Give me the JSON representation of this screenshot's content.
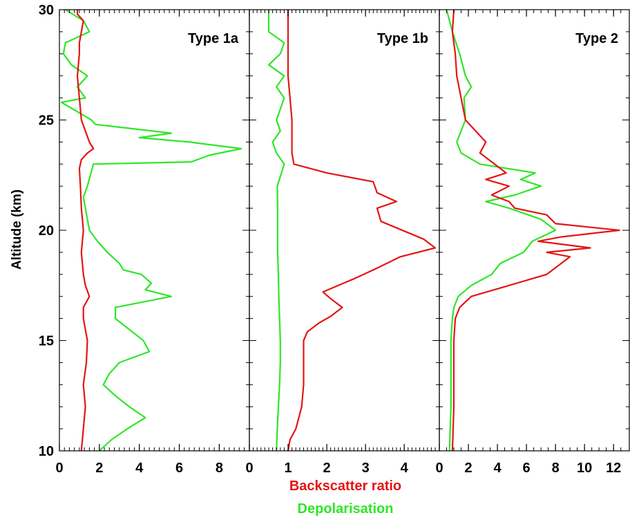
{
  "chart_data": {
    "type": "line",
    "ylabel": "Altitude (km)",
    "ylim": [
      10,
      30
    ],
    "yticks": [
      10,
      15,
      20,
      25,
      30
    ],
    "bottom_labels": [
      "Backscatter ratio",
      "Depolarisation"
    ],
    "colors": {
      "backscatter": "#e41414",
      "depolarisation": "#2ee628",
      "axes": "#000000"
    },
    "panels": [
      {
        "title": "Type 1a",
        "xlim": [
          0,
          9.3
        ],
        "xticks": [
          0,
          2,
          4,
          6,
          8
        ],
        "xtick_labels": [
          "0",
          "2",
          "4",
          "6",
          "8"
        ],
        "series": [
          {
            "name": "Backscatter ratio",
            "y": [
              10,
              11,
              12,
              13,
              14,
              15,
              16,
              16.5,
              17,
              17.5,
              18,
              19,
              20,
              21,
              22,
              22.8,
              23.2,
              23.5,
              23.7,
              24,
              24.5,
              25,
              26,
              27,
              28,
              28.5,
              29,
              29.5,
              29.8,
              30
            ],
            "x": [
              1.1,
              1.2,
              1.3,
              1.2,
              1.35,
              1.4,
              1.2,
              1.2,
              1.5,
              1.3,
              1.2,
              1.1,
              1.2,
              1.1,
              1.05,
              1.0,
              1.1,
              1.4,
              1.7,
              1.5,
              1.3,
              1.1,
              1.0,
              0.9,
              1.0,
              1.0,
              1.1,
              1.2,
              0.9,
              0.9
            ]
          },
          {
            "name": "Depolarisation",
            "y": [
              10,
              10.5,
              11,
              11.5,
              12,
              12.5,
              13,
              13.5,
              14,
              14.5,
              15,
              15.5,
              16,
              16.5,
              17,
              17.3,
              17.6,
              18,
              18.2,
              18.5,
              19,
              19.5,
              20,
              21,
              21.5,
              22,
              23,
              23.1,
              23.4,
              23.7,
              24,
              24.2,
              24.4,
              24.8,
              25,
              25.8,
              26,
              26.5,
              27,
              27.5,
              28,
              28.5,
              29,
              29.5,
              30
            ],
            "x": [
              2.0,
              2.6,
              3.4,
              4.3,
              3.5,
              2.8,
              2.2,
              2.5,
              3.0,
              4.5,
              4.2,
              3.5,
              2.8,
              2.8,
              5.6,
              4.3,
              4.6,
              4.1,
              3.2,
              3.0,
              2.4,
              1.9,
              1.5,
              1.3,
              1.2,
              1.4,
              1.7,
              6.6,
              7.5,
              9.1,
              6.5,
              4.0,
              5.6,
              1.8,
              1.6,
              0.1,
              1.3,
              0.9,
              1.4,
              0.6,
              0.2,
              0.3,
              1.5,
              1.2,
              0.3
            ]
          }
        ]
      },
      {
        "title": "Type 1b",
        "xlim": [
          0,
          4.8
        ],
        "xticks": [
          0,
          1,
          2,
          3,
          4
        ],
        "xtick_labels": [
          "0",
          "1",
          "2",
          "3",
          "4"
        ],
        "series": [
          {
            "name": "Backscatter ratio",
            "y": [
              10,
              10.5,
              11,
              12,
              13,
              14,
              15,
              15.4,
              15.8,
              16.1,
              16.5,
              16.9,
              17.2,
              17.8,
              18.2,
              18.8,
              19.2,
              19.6,
              20.4,
              21,
              21.3,
              21.7,
              22.2,
              22.6,
              23,
              23.5,
              25,
              27,
              29,
              30
            ],
            "x": [
              1.0,
              1.05,
              1.2,
              1.35,
              1.4,
              1.4,
              1.4,
              1.5,
              1.8,
              2.1,
              2.4,
              2.1,
              1.9,
              2.7,
              3.2,
              3.9,
              4.8,
              4.5,
              3.4,
              3.3,
              3.8,
              3.3,
              3.2,
              2.0,
              1.15,
              1.1,
              1.1,
              1.0,
              1.0,
              1.0
            ]
          },
          {
            "name": "Depolarisation",
            "y": [
              10,
              11,
              12,
              13,
              14,
              15,
              16,
              17,
              18,
              19,
              20,
              21,
              22,
              23,
              23.5,
              24,
              24.5,
              25,
              25.5,
              26,
              26.5,
              27,
              27.5,
              28,
              28.5,
              29,
              29.5,
              30
            ],
            "x": [
              0.7,
              0.72,
              0.75,
              0.78,
              0.8,
              0.8,
              0.78,
              0.76,
              0.75,
              0.73,
              0.73,
              0.73,
              0.72,
              0.9,
              0.7,
              0.6,
              0.8,
              0.7,
              0.8,
              0.9,
              0.7,
              0.9,
              0.5,
              0.8,
              0.9,
              0.5,
              0.5,
              0.5
            ]
          }
        ]
      },
      {
        "title": "Type 2",
        "xlim": [
          0,
          12.8
        ],
        "xticks": [
          0,
          2,
          4,
          6,
          8,
          10,
          12
        ],
        "xtick_labels": [
          "0",
          "2",
          "4",
          "6",
          "8",
          "10",
          "12"
        ],
        "series": [
          {
            "name": "Backscatter ratio",
            "y": [
              10,
              12,
              14,
              15,
              16,
              16.5,
              17,
              17.5,
              18,
              18.5,
              18.8,
              19,
              19.2,
              19.5,
              19.7,
              20,
              20.3,
              20.7,
              21,
              21.3,
              21.6,
              22,
              22.3,
              22.6,
              23,
              23.5,
              24,
              25,
              26,
              27,
              28,
              29,
              30
            ],
            "x": [
              0.9,
              1.0,
              1.0,
              1.0,
              1.1,
              1.4,
              2.2,
              4.8,
              7.4,
              8.4,
              9.0,
              7.4,
              10.4,
              6.8,
              8.4,
              12.4,
              8.0,
              7.4,
              5.2,
              4.8,
              3.6,
              4.8,
              3.2,
              4.6,
              3.8,
              2.8,
              3.2,
              1.8,
              1.5,
              1.2,
              1.1,
              0.9,
              1.0
            ]
          },
          {
            "name": "Depolarisation",
            "y": [
              10,
              12,
              14,
              15,
              16,
              16.5,
              17,
              17.5,
              18,
              18.5,
              19,
              19.5,
              20,
              20.5,
              21,
              21.3,
              21.6,
              22,
              22.3,
              22.6,
              23,
              23.5,
              24,
              25,
              26,
              26.5,
              27,
              28,
              29,
              30
            ],
            "x": [
              0.7,
              0.8,
              0.8,
              0.8,
              0.9,
              1.0,
              1.3,
              2.2,
              3.6,
              4.2,
              5.8,
              6.4,
              8.0,
              7.0,
              4.8,
              3.2,
              5.2,
              7.0,
              5.6,
              6.6,
              2.8,
              1.5,
              1.2,
              1.8,
              1.7,
              2.2,
              1.8,
              1.4,
              0.9,
              0.5
            ]
          }
        ]
      }
    ]
  }
}
